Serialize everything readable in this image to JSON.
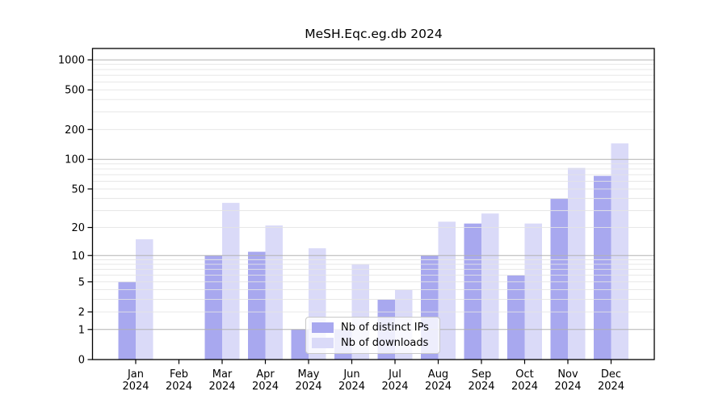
{
  "chart_data": {
    "type": "bar",
    "title": "MeSH.Eqc.eg.db 2024",
    "categories": [
      "Jan 2024",
      "Feb 2024",
      "Mar 2024",
      "Apr 2024",
      "May 2024",
      "Jun 2024",
      "Jul 2024",
      "Aug 2024",
      "Sep 2024",
      "Oct 2024",
      "Nov 2024",
      "Dec 2024"
    ],
    "series": [
      {
        "name": "Nb of distinct IPs",
        "color": "#a8a8ef",
        "values": [
          5,
          0,
          10,
          11,
          1,
          1,
          3,
          10,
          22,
          6,
          40,
          68
        ]
      },
      {
        "name": "Nb of downloads",
        "color": "#dadaf8",
        "values": [
          15,
          0,
          36,
          21,
          12,
          8,
          4,
          23,
          28,
          22,
          82,
          145
        ]
      }
    ],
    "yscale": "log10(value+1)",
    "yticks": [
      0,
      1,
      2,
      5,
      10,
      20,
      50,
      100,
      200,
      500,
      1000
    ],
    "ylim": [
      0,
      1300
    ],
    "xlabel": "",
    "ylabel": "",
    "grid": true,
    "legend_position": "inside-bottom-center",
    "colors": {
      "background": "#ffffff",
      "frame": "#000000",
      "grid_decade": "#b2b2b2",
      "grid_minor": "#e4e4e4",
      "legend_border": "#c9c9c9"
    }
  }
}
